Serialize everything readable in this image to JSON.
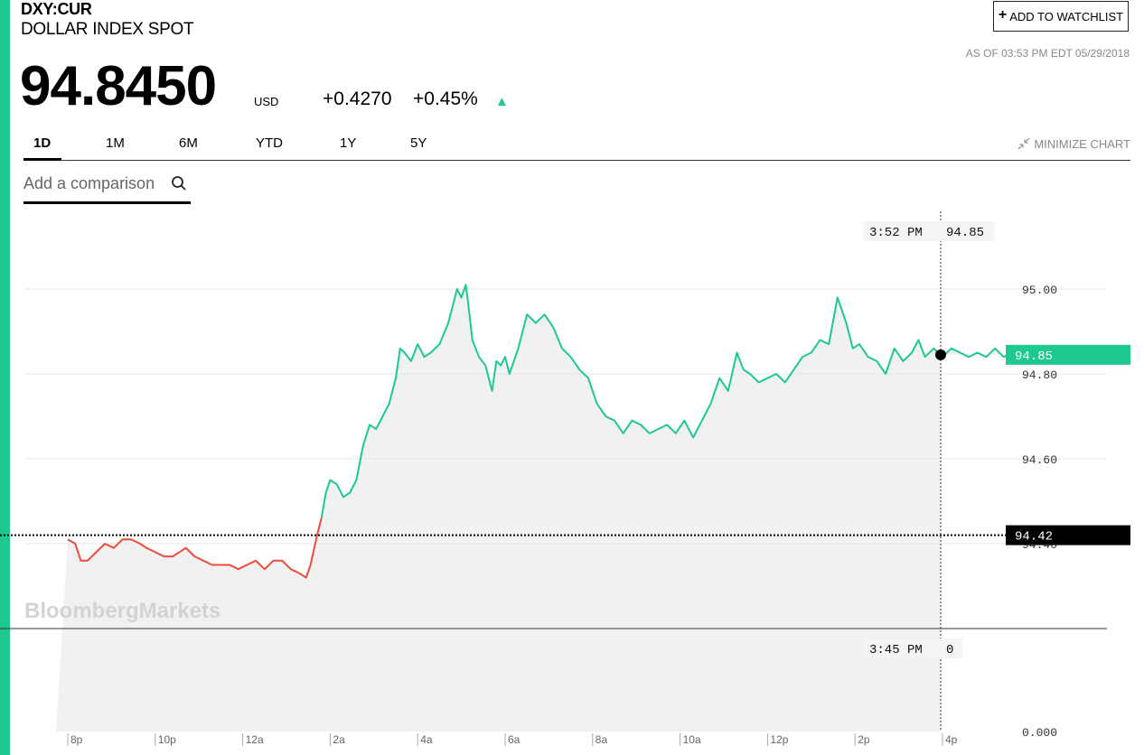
{
  "header": {
    "ticker": "DXY:CUR",
    "name": "DOLLAR INDEX SPOT",
    "price": "94.8450",
    "currency": "USD",
    "change": "+0.4270",
    "change_pct": "+0.45%",
    "as_of": "AS OF 03:53 PM EDT 05/29/2018",
    "watchlist_label": "ADD TO WATCHLIST",
    "minimize_label": "MINIMIZE CHART"
  },
  "tabs": [
    {
      "label": "1D",
      "active": true
    },
    {
      "label": "1M",
      "active": false
    },
    {
      "label": "6M",
      "active": false
    },
    {
      "label": "YTD",
      "active": false
    },
    {
      "label": "1Y",
      "active": false
    },
    {
      "label": "5Y",
      "active": false
    }
  ],
  "comparison": {
    "placeholder": "Add a comparison"
  },
  "colors": {
    "accent": "#1ec98d",
    "up": "#1ec98d",
    "down": "#f04a3e",
    "fill": "#f1f1f1"
  },
  "chart_data": {
    "type": "line",
    "watermark": "BloombergMarkets",
    "x_ticks": [
      "8p",
      "10p",
      "12a",
      "2a",
      "4a",
      "6a",
      "8a",
      "10a",
      "12p",
      "2p",
      "4p"
    ],
    "y_ticks": [
      "95.00",
      "94.80",
      "94.60",
      "94.40"
    ],
    "ylim": [
      94.2,
      95.06
    ],
    "previous_close": "94.42",
    "previous_close_value": 94.42,
    "last_label": "94.85",
    "last_value": 94.845,
    "crosshair_time": "3:52 PM",
    "crosshair_value": "94.85",
    "volume_time": "3:45 PM",
    "volume_value": "0",
    "volume_axis_label": "0.000",
    "series": [
      {
        "x": [
          -4.0,
          -3.83,
          -3.7,
          -3.55,
          -3.35,
          -3.15,
          -2.95,
          -2.75,
          -2.55,
          -2.35,
          -2.2,
          -2.0,
          -1.8,
          -1.6,
          -1.45,
          -1.3,
          -1.1,
          -0.9,
          -0.7,
          -0.5,
          -0.3,
          -0.1,
          0.1,
          0.3,
          0.5,
          0.7,
          0.9,
          1.1,
          1.3,
          1.45,
          1.55,
          1.7,
          1.8,
          1.9,
          2.0,
          2.15,
          2.3,
          2.45,
          2.6,
          2.75,
          2.9,
          3.05,
          3.2,
          3.35,
          3.5,
          3.6,
          3.7,
          3.85,
          4.0,
          4.15,
          4.3,
          4.5,
          4.7,
          4.9,
          5.0,
          5.1,
          5.15,
          5.25,
          5.4,
          5.55,
          5.7,
          5.8,
          5.9,
          6.0,
          6.1,
          6.3,
          6.5,
          6.7,
          6.9,
          7.1,
          7.3,
          7.5,
          7.7,
          7.9,
          8.1,
          8.3,
          8.5,
          8.7,
          8.9,
          9.1,
          9.3,
          9.5,
          9.7,
          9.9,
          10.1,
          10.3,
          10.5,
          10.7,
          10.9,
          11.1,
          11.3,
          11.45,
          11.6,
          11.8,
          12.0,
          12.2,
          12.4,
          12.6,
          12.8,
          13.0,
          13.2,
          13.4,
          13.6,
          13.8,
          13.95,
          14.1,
          14.3,
          14.5,
          14.7,
          14.9,
          15.1,
          15.3,
          15.45,
          15.6,
          15.8,
          16.0,
          16.2,
          16.4,
          16.6,
          16.8,
          17.0,
          17.2,
          17.4,
          17.6,
          17.8,
          17.95,
          18.1,
          18.3,
          18.5,
          18.7,
          18.9,
          19.1,
          19.3,
          19.5,
          19.7,
          19.87
        ],
        "y": [
          94.41,
          94.4,
          94.36,
          94.36,
          94.38,
          94.4,
          94.39,
          94.41,
          94.41,
          94.4,
          94.39,
          94.38,
          94.37,
          94.37,
          94.38,
          94.39,
          94.37,
          94.36,
          94.35,
          94.35,
          94.35,
          94.34,
          94.35,
          94.36,
          94.34,
          94.36,
          94.36,
          94.34,
          94.33,
          94.32,
          94.35,
          94.42,
          94.46,
          94.52,
          94.55,
          94.54,
          94.51,
          94.52,
          94.55,
          94.63,
          94.68,
          94.67,
          94.7,
          94.73,
          94.79,
          94.86,
          94.85,
          94.83,
          94.87,
          94.84,
          94.85,
          94.87,
          94.92,
          95.0,
          94.98,
          95.01,
          94.97,
          94.88,
          94.84,
          94.82,
          94.76,
          94.83,
          94.82,
          94.84,
          94.8,
          94.86,
          94.94,
          94.92,
          94.94,
          94.91,
          94.86,
          94.84,
          94.81,
          94.79,
          94.73,
          94.7,
          94.69,
          94.66,
          94.69,
          94.68,
          94.66,
          94.67,
          94.68,
          94.66,
          94.69,
          94.65,
          94.69,
          94.73,
          94.79,
          94.76,
          94.85,
          94.81,
          94.8,
          94.78,
          94.79,
          94.8,
          94.78,
          94.81,
          94.84,
          94.85,
          94.88,
          94.87,
          94.98,
          94.92,
          94.86,
          94.87,
          94.84,
          94.83,
          94.8,
          94.86,
          94.83,
          94.85,
          94.88,
          94.84,
          94.86,
          94.84,
          94.86,
          94.85,
          94.84,
          94.85,
          94.84,
          94.86,
          94.84,
          94.85,
          94.84,
          94.86,
          94.85,
          94.84,
          94.85,
          94.86,
          94.84,
          94.85,
          94.86,
          94.84,
          94.85,
          94.845
        ]
      }
    ]
  }
}
